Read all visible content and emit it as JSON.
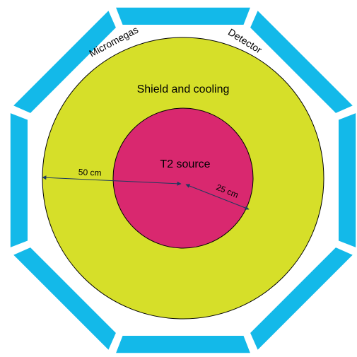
{
  "labels": {
    "detector_word_1": "Micromegas",
    "detector_word_2": "Detector",
    "outer_region": "Shield and cooling",
    "inner_region": "T2 source",
    "outer_radius": "50 cm",
    "inner_radius": "25 cm"
  },
  "colors": {
    "detector": "#13b9e9",
    "shield": "#d6df29",
    "source": "#d9286f",
    "outline": "#000000",
    "arrow": "#1f3a5f"
  }
}
